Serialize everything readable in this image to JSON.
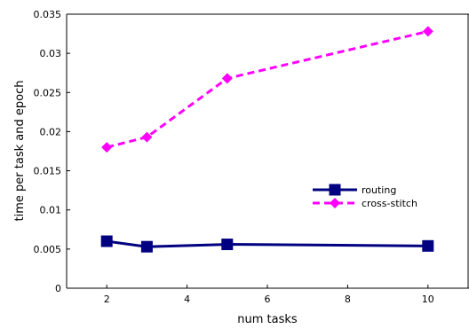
{
  "chart_data": {
    "type": "line",
    "xlabel": "num tasks",
    "ylabel": "time per task and epoch",
    "xlim": [
      1,
      11
    ],
    "ylim": [
      0,
      0.035
    ],
    "x_ticks": [
      2,
      4,
      6,
      8,
      10
    ],
    "y_ticks": [
      0,
      0.005,
      0.01,
      0.015,
      0.02,
      0.025,
      0.03,
      0.035
    ],
    "x_tick_labels": [
      "2",
      "4",
      "6",
      "8",
      "10"
    ],
    "y_tick_labels": [
      "0",
      "0.005",
      "0.01",
      "0.015",
      "0.02",
      "0.025",
      "0.03",
      "0.035"
    ],
    "grid": false,
    "legend_position": "right",
    "series": [
      {
        "name": "routing",
        "color": "#000080",
        "marker": "square",
        "line_style": "solid",
        "x": [
          2,
          3,
          5,
          10
        ],
        "values": [
          0.006,
          0.0053,
          0.0056,
          0.0054
        ]
      },
      {
        "name": "cross-stitch",
        "color": "#ff00ff",
        "marker": "diamond",
        "line_style": "dashed",
        "x": [
          2,
          3,
          5,
          10
        ],
        "values": [
          0.018,
          0.0193,
          0.0268,
          0.0328
        ]
      }
    ]
  }
}
